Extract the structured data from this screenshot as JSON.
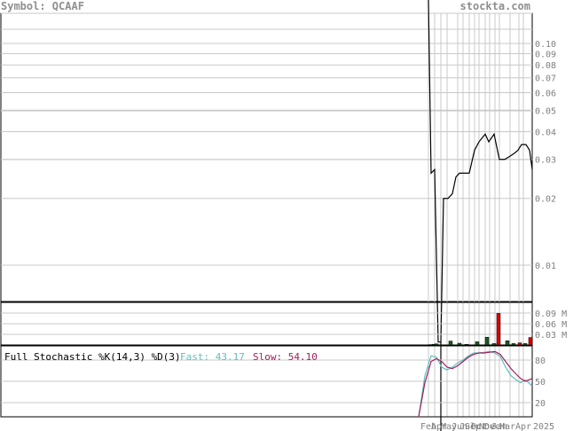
{
  "header": {
    "symbol_label": "Symbol: QCAAF",
    "site": "stockta.com"
  },
  "stochastic": {
    "title": "Full Stochastic %K(14,3) %D(3)",
    "fast_label": "Fast: 43.17",
    "slow_label": "Slow: 54.10"
  },
  "colors": {
    "price": "#000000",
    "fast": "#5fbfbf",
    "slow": "#a01e5a",
    "vol_up": "#1e5a1e",
    "vol_down": "#dc0000",
    "grid": "#c8c8c8"
  },
  "chart_data": [
    {
      "type": "line",
      "name": "price",
      "scale": "log",
      "y_ticks": [
        "0.10",
        "0.09",
        "0.08",
        "0.07",
        "0.06",
        "0.05",
        "0.04",
        "0.03",
        "0.02",
        "0.01"
      ],
      "y_tick_values": [
        0.1,
        0.09,
        0.08,
        0.07,
        0.06,
        0.05,
        0.04,
        0.03,
        0.02,
        0.01
      ],
      "x_ticks": [
        "Feb",
        "Apr",
        "May",
        "Jun",
        "Jul",
        "Sep",
        "Oct",
        "Nov",
        "Dec",
        "Jan",
        "Mar",
        "Apr",
        "2025"
      ],
      "values": [
        0.14,
        0.026,
        0.027,
        0.0045,
        0.0045,
        0.02,
        0.02,
        0.021,
        0.025,
        0.026,
        0.026,
        0.026,
        0.033,
        0.036,
        0.039,
        0.036,
        0.039,
        0.03,
        0.03,
        0.031,
        0.032,
        0.033,
        0.035,
        0.035,
        0.033,
        0.027
      ],
      "grid": true
    },
    {
      "type": "bar",
      "name": "volume",
      "y_ticks": [
        "0.09 M",
        "0.06 M",
        "0.03 M"
      ],
      "y_tick_values": [
        0.09,
        0.06,
        0.03
      ],
      "ylim": [
        0,
        0.12
      ],
      "values": [
        0.001,
        0.002,
        0.003,
        0.011,
        0.005,
        0.002,
        0.009,
        0.022,
        0.004,
        0.089,
        0.012,
        0.004,
        0.006,
        0.004,
        0.021
      ],
      "up": [
        false,
        true,
        true,
        true,
        true,
        true,
        true,
        true,
        true,
        false,
        true,
        true,
        false,
        true,
        false
      ]
    },
    {
      "type": "line",
      "name": "stochastic",
      "y_ticks": [
        "80",
        "50",
        "20"
      ],
      "y_tick_values": [
        80,
        50,
        20
      ],
      "ylim": [
        0,
        100
      ],
      "series": [
        {
          "name": "Fast",
          "values": [
            0,
            58,
            86,
            84,
            70,
            66,
            70,
            76,
            80,
            86,
            90,
            90,
            91,
            92,
            90,
            85,
            70,
            58,
            52,
            48,
            52,
            48,
            43
          ]
        },
        {
          "name": "Slow",
          "values": [
            0,
            48,
            78,
            82,
            78,
            70,
            68,
            72,
            78,
            84,
            88,
            90,
            90,
            91,
            92,
            88,
            78,
            68,
            60,
            54,
            50,
            52,
            54
          ]
        }
      ]
    }
  ]
}
